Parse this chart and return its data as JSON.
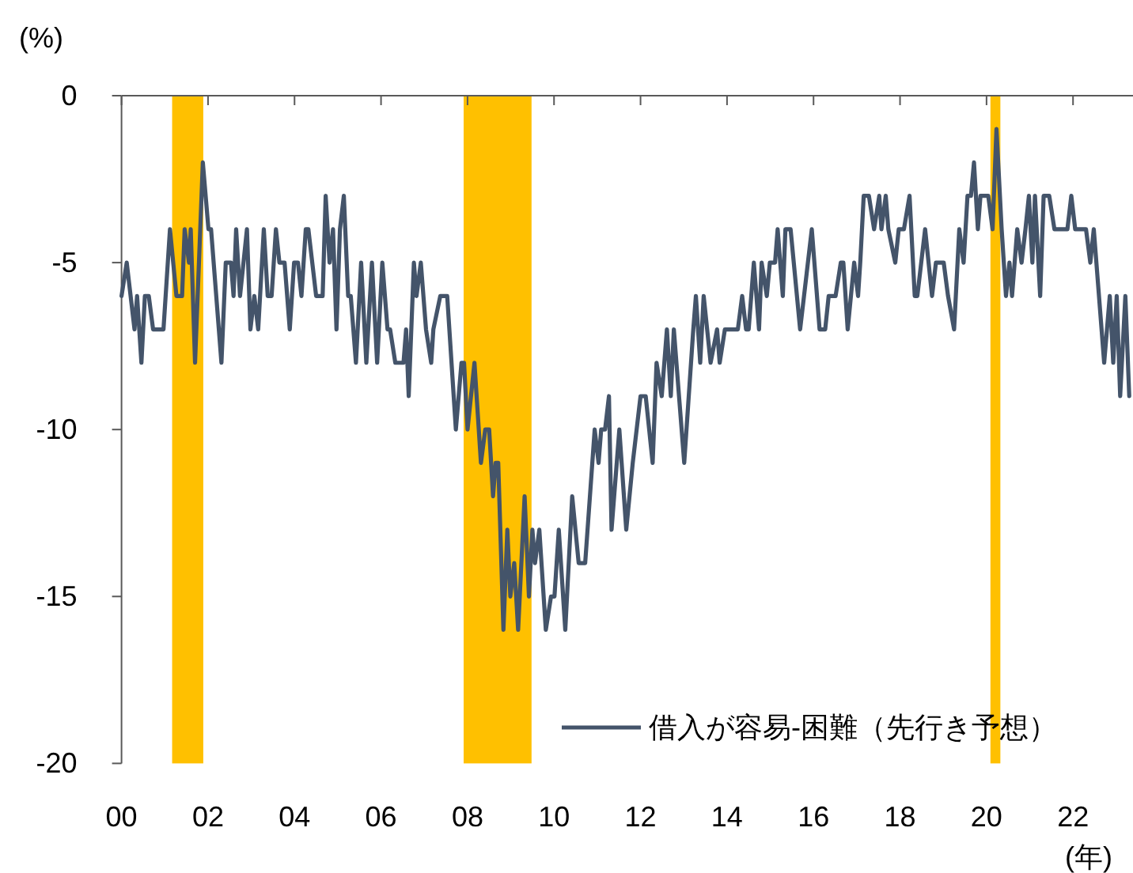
{
  "chart_data": {
    "type": "line",
    "xlabel": "(年)",
    "ylabel": "(%)",
    "xlim": [
      2000,
      2023.35
    ],
    "ylim": [
      -20,
      0
    ],
    "xticks": [
      {
        "value": 2000,
        "label": "00"
      },
      {
        "value": 2002,
        "label": "02"
      },
      {
        "value": 2004,
        "label": "04"
      },
      {
        "value": 2006,
        "label": "06"
      },
      {
        "value": 2008,
        "label": "08"
      },
      {
        "value": 2010,
        "label": "10"
      },
      {
        "value": 2012,
        "label": "12"
      },
      {
        "value": 2014,
        "label": "14"
      },
      {
        "value": 2016,
        "label": "16"
      },
      {
        "value": 2018,
        "label": "18"
      },
      {
        "value": 2020,
        "label": "20"
      },
      {
        "value": 2022,
        "label": "22"
      }
    ],
    "yticks": [
      0,
      -5,
      -10,
      -15,
      -20
    ],
    "grid": false,
    "legend": "bottom right",
    "marker": "none",
    "line_style": "solid",
    "bands": [
      {
        "axis": "x",
        "from": 2001.17,
        "to": 2001.89,
        "color": "#ffc000"
      },
      {
        "axis": "x",
        "from": 2007.91,
        "to": 2009.48,
        "color": "#ffc000"
      },
      {
        "axis": "x",
        "from": 2020.09,
        "to": 2020.32,
        "color": "#ffc000"
      }
    ],
    "series": [
      {
        "name": "借入が容易-困難（先行き予想）",
        "color": "#44546a",
        "x": [
          2000.0,
          2000.12,
          2000.3,
          2000.36,
          2000.46,
          2000.54,
          2000.63,
          2000.73,
          2000.97,
          2001.12,
          2001.27,
          2001.4,
          2001.46,
          2001.56,
          2001.6,
          2001.7,
          2001.88,
          2002.01,
          2002.07,
          2002.31,
          2002.41,
          2002.53,
          2002.59,
          2002.65,
          2002.74,
          2002.9,
          2002.98,
          2003.07,
          2003.16,
          2003.29,
          2003.38,
          2003.47,
          2003.57,
          2003.65,
          2003.77,
          2003.89,
          2003.99,
          2004.08,
          2004.16,
          2004.26,
          2004.32,
          2004.5,
          2004.65,
          2004.72,
          2004.81,
          2004.89,
          2004.97,
          2005.05,
          2005.14,
          2005.24,
          2005.3,
          2005.42,
          2005.54,
          2005.66,
          2005.79,
          2005.91,
          2006.03,
          2006.15,
          2006.21,
          2006.33,
          2006.52,
          2006.58,
          2006.64,
          2006.76,
          2006.82,
          2006.92,
          2007.04,
          2007.16,
          2007.21,
          2007.37,
          2007.53,
          2007.73,
          2007.86,
          2007.92,
          2008.0,
          2008.16,
          2008.31,
          2008.41,
          2008.5,
          2008.59,
          2008.65,
          2008.71,
          2008.83,
          2008.92,
          2008.99,
          2009.08,
          2009.17,
          2009.32,
          2009.42,
          2009.5,
          2009.56,
          2009.66,
          2009.81,
          2009.93,
          2010.01,
          2010.11,
          2010.26,
          2010.42,
          2010.57,
          2010.72,
          2010.94,
          2011.03,
          2011.09,
          2011.18,
          2011.27,
          2011.33,
          2011.51,
          2011.67,
          2011.82,
          2012.0,
          2012.12,
          2012.28,
          2012.37,
          2012.49,
          2012.61,
          2012.7,
          2012.77,
          2013.01,
          2013.22,
          2013.28,
          2013.38,
          2013.46,
          2013.62,
          2013.77,
          2013.83,
          2013.95,
          2014.25,
          2014.35,
          2014.44,
          2014.5,
          2014.62,
          2014.74,
          2014.8,
          2014.92,
          2014.99,
          2015.11,
          2015.17,
          2015.29,
          2015.35,
          2015.47,
          2015.69,
          2015.96,
          2016.14,
          2016.27,
          2016.35,
          2016.51,
          2016.63,
          2016.69,
          2016.79,
          2016.94,
          2017.03,
          2017.08,
          2017.16,
          2017.28,
          2017.4,
          2017.52,
          2017.57,
          2017.67,
          2017.73,
          2017.89,
          2017.97,
          2018.09,
          2018.22,
          2018.34,
          2018.4,
          2018.58,
          2018.74,
          2018.83,
          2019.01,
          2019.11,
          2019.25,
          2019.37,
          2019.47,
          2019.56,
          2019.64,
          2019.71,
          2019.8,
          2019.86,
          2020.04,
          2020.14,
          2020.23,
          2020.35,
          2020.45,
          2020.53,
          2020.59,
          2020.71,
          2020.81,
          2020.9,
          2020.98,
          2021.06,
          2021.12,
          2021.24,
          2021.32,
          2021.45,
          2021.57,
          2021.87,
          2021.96,
          2022.05,
          2022.3,
          2022.4,
          2022.48,
          2022.72,
          2022.85,
          2022.93,
          2023.01,
          2023.09,
          2023.21,
          2023.3
        ],
        "values": [
          -6,
          -5,
          -7,
          -6,
          -8,
          -6,
          -6,
          -7,
          -7,
          -4,
          -6,
          -6,
          -4,
          -5,
          -4,
          -8,
          -2,
          -4,
          -4,
          -8,
          -5,
          -5,
          -6,
          -4,
          -6,
          -4,
          -7,
          -6,
          -7,
          -4,
          -6,
          -6,
          -4,
          -5,
          -5,
          -7,
          -5,
          -5,
          -6,
          -4,
          -4,
          -6,
          -6,
          -3,
          -5,
          -4,
          -7,
          -4,
          -3,
          -6,
          -6,
          -8,
          -5,
          -8,
          -5,
          -8,
          -5,
          -7,
          -7,
          -8,
          -8,
          -7,
          -9,
          -5,
          -6,
          -5,
          -7,
          -8,
          -7,
          -6,
          -6,
          -10,
          -8,
          -8,
          -10,
          -8,
          -11,
          -10,
          -10,
          -12,
          -11,
          -11,
          -16,
          -13,
          -15,
          -14,
          -16,
          -12,
          -15,
          -13,
          -14,
          -13,
          -16,
          -15,
          -15,
          -13,
          -16,
          -12,
          -14,
          -14,
          -10,
          -11,
          -10,
          -10,
          -9,
          -13,
          -10,
          -13,
          -11,
          -9,
          -9,
          -11,
          -8,
          -9,
          -7,
          -9,
          -7,
          -11,
          -7,
          -6,
          -8,
          -6,
          -8,
          -7,
          -8,
          -7,
          -7,
          -6,
          -7,
          -7,
          -5,
          -7,
          -5,
          -6,
          -5,
          -5,
          -4,
          -6,
          -4,
          -4,
          -7,
          -4,
          -7,
          -7,
          -6,
          -6,
          -5,
          -5,
          -7,
          -5,
          -6,
          -5,
          -3,
          -3,
          -4,
          -3,
          -4,
          -3,
          -4,
          -5,
          -4,
          -4,
          -3,
          -6,
          -6,
          -4,
          -6,
          -5,
          -5,
          -6,
          -7,
          -4,
          -5,
          -3,
          -3,
          -2,
          -4,
          -3,
          -3,
          -4,
          -1,
          -4,
          -6,
          -5,
          -6,
          -4,
          -5,
          -4,
          -3,
          -5,
          -3,
          -6,
          -3,
          -3,
          -4,
          -4,
          -3,
          -4,
          -4,
          -5,
          -4,
          -8,
          -6,
          -8,
          -6,
          -9,
          -6,
          -9
        ]
      }
    ]
  }
}
